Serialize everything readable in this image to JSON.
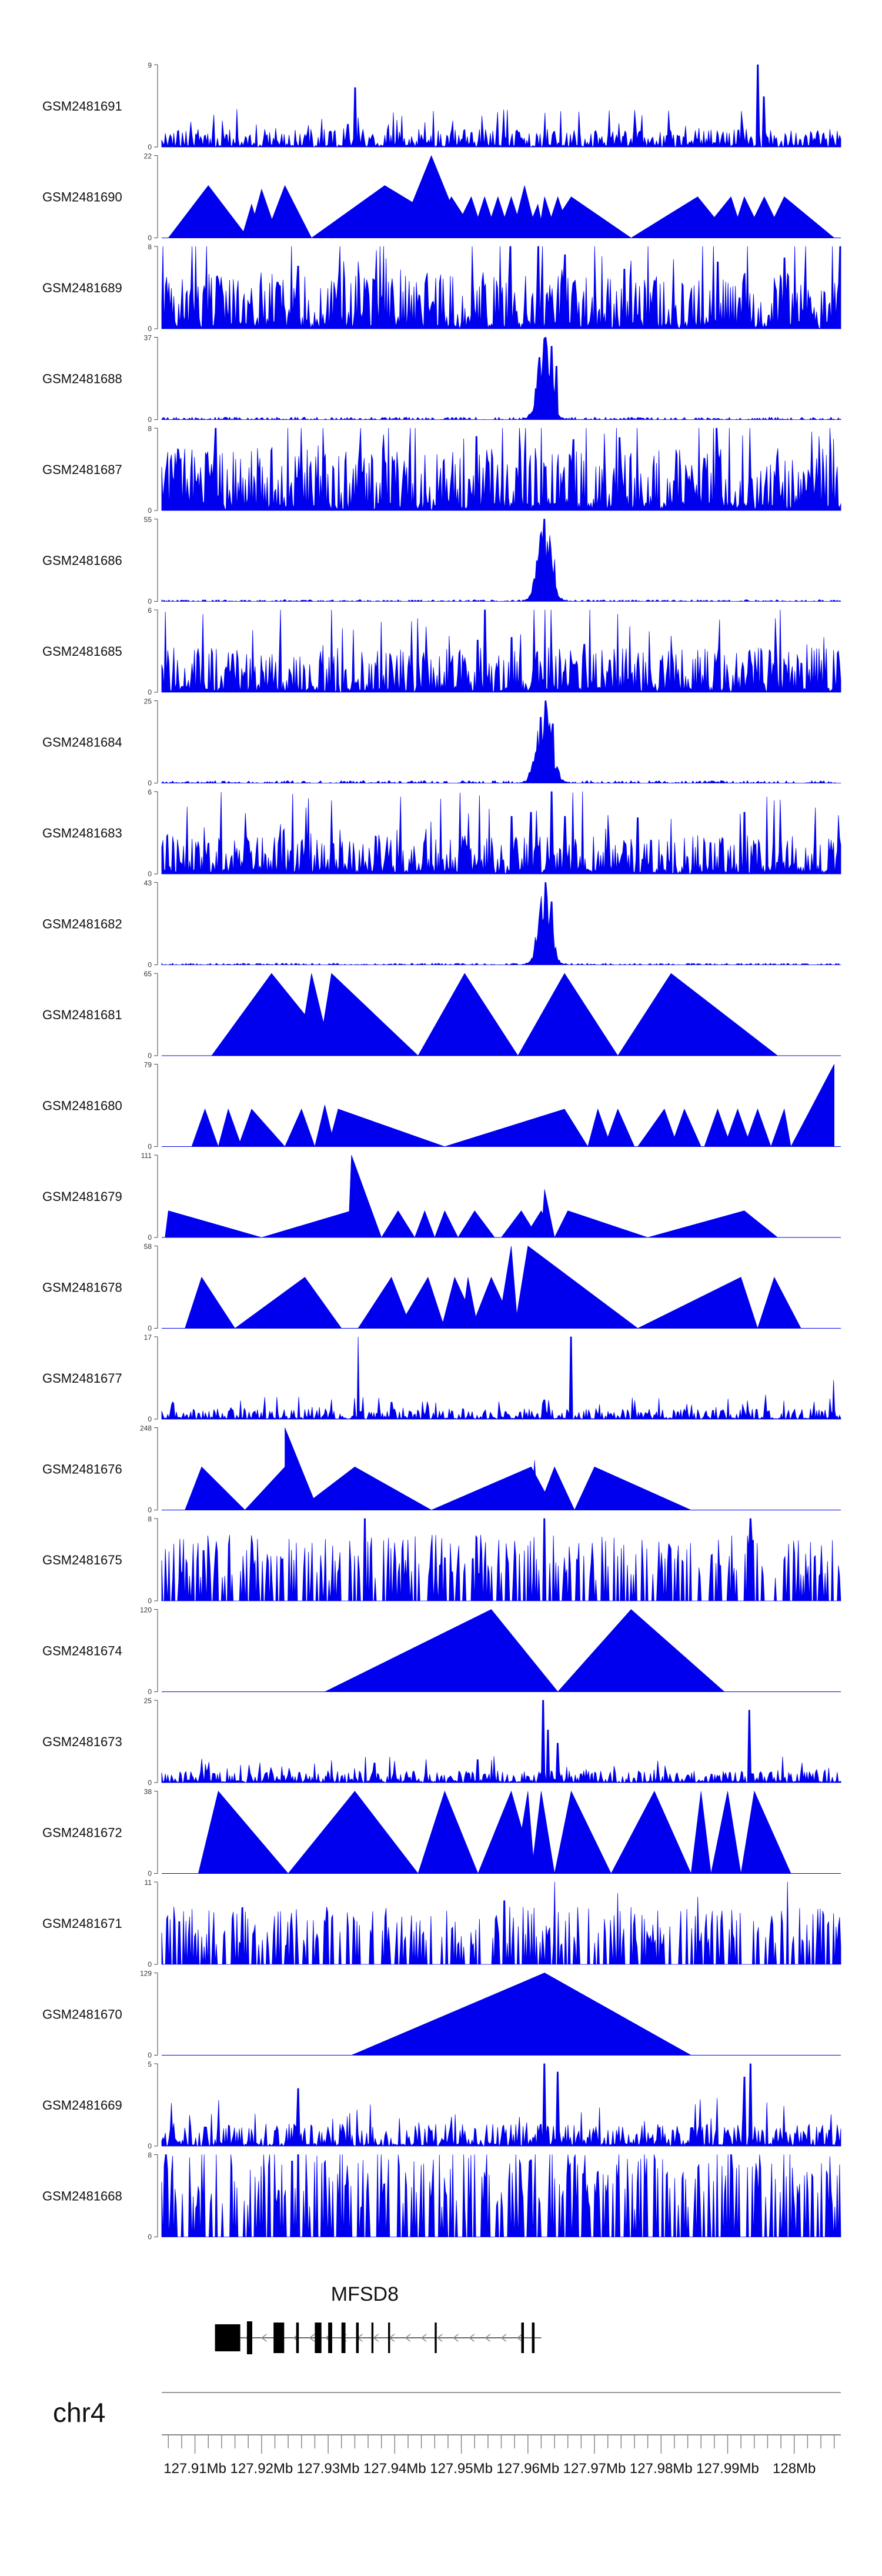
{
  "chart_data": {
    "type": "area",
    "chromosome": "chr4",
    "x_range_mb": [
      127.905,
      128.007
    ],
    "axis_ticks": [
      "127.91Mb",
      "127.92Mb",
      "127.93Mb",
      "127.94Mb",
      "127.95Mb",
      "127.96Mb",
      "127.97Mb",
      "127.98Mb",
      "127.99Mb",
      "128Mb"
    ],
    "fill_color": "#0000ee",
    "gene": {
      "name": "MFSD8",
      "strand": "-",
      "start": 127.913,
      "end": 127.962,
      "exons": [
        [
          127.913,
          127.9168
        ],
        [
          127.9178,
          127.9186
        ],
        [
          127.9218,
          127.9234
        ],
        [
          127.9252,
          127.9256
        ],
        [
          127.928,
          127.929
        ],
        [
          127.93,
          127.9306
        ],
        [
          127.932,
          127.9326
        ],
        [
          127.9342,
          127.9346
        ],
        [
          127.9365,
          127.9368
        ],
        [
          127.939,
          127.9393
        ],
        [
          127.946,
          127.9463
        ],
        [
          127.959,
          127.9594
        ],
        [
          127.9606,
          127.961
        ]
      ]
    },
    "tracks": [
      {
        "name": "GSM2481691",
        "ymax": 9,
        "style": "dense",
        "seed": 11,
        "base": 0.12,
        "spikes": [
          [
            127.934,
            6.5
          ],
          [
            127.9345,
            3.2
          ],
          [
            127.9515,
            1.6
          ],
          [
            127.9945,
            9
          ],
          [
            127.9955,
            5.5
          ],
          [
            127.933,
            2.5
          ]
        ]
      },
      {
        "name": "GSM2481690",
        "ymax": 22,
        "style": "tri",
        "peaks": [
          [
            127.906,
            127.912,
            127.918,
            14
          ],
          [
            127.917,
            127.9185,
            127.92,
            9
          ],
          [
            127.918,
            127.92,
            127.9225,
            13
          ],
          [
            127.9205,
            127.9235,
            127.9275,
            14
          ],
          [
            127.9275,
            127.9385,
            127.9515,
            14
          ],
          [
            127.9405,
            127.9455,
            127.9505,
            22
          ],
          [
            127.9455,
            127.9485,
            127.9525,
            11
          ],
          [
            127.9485,
            127.9515,
            127.9535,
            11
          ],
          [
            127.9515,
            127.9535,
            127.9555,
            11
          ],
          [
            127.9535,
            127.9555,
            127.9575,
            11
          ],
          [
            127.9555,
            127.9575,
            127.9595,
            11
          ],
          [
            127.9575,
            127.9595,
            127.9615,
            14
          ],
          [
            127.9595,
            127.9615,
            127.9625,
            9
          ],
          [
            127.9615,
            127.9625,
            127.9645,
            11
          ],
          [
            127.9625,
            127.9645,
            127.9665,
            11
          ],
          [
            127.9625,
            127.9665,
            127.9755,
            11
          ],
          [
            127.9755,
            127.9855,
            127.9905,
            11
          ],
          [
            127.9855,
            127.9905,
            127.9925,
            11
          ],
          [
            127.9905,
            127.9925,
            127.9955,
            11
          ],
          [
            127.9925,
            127.9955,
            127.9985,
            11
          ],
          [
            127.9955,
            127.9985,
            128.006,
            11
          ]
        ]
      },
      {
        "name": "GSM2481689",
        "ymax": 8,
        "style": "dense",
        "seed": 23,
        "base": 0.38,
        "spikes": [
          [
            127.9615,
            8
          ],
          [
            127.9655,
            7.2
          ],
          [
            127.9755,
            6.6
          ],
          [
            127.9745,
            5.8
          ],
          [
            127.9255,
            6.1
          ],
          [
            127.9885,
            6.5
          ],
          [
            127.9985,
            6.9
          ]
        ]
      },
      {
        "name": "GSM2481688",
        "ymax": 37,
        "style": "peak",
        "seed": 31,
        "base": 0.03,
        "center": 127.9625,
        "width": 0.0016,
        "height": 0.92,
        "spikes": [
          [
            127.9627,
            37
          ],
          [
            127.9635,
            33
          ],
          [
            127.9618,
            28
          ],
          [
            127.9643,
            24
          ]
        ]
      },
      {
        "name": "GSM2481687",
        "ymax": 8,
        "style": "dense",
        "seed": 37,
        "base": 0.42,
        "spikes": [
          [
            127.9883,
            8
          ],
          [
            127.9523,
            7.2
          ],
          [
            127.9668,
            6.9
          ],
          [
            127.9738,
            7.1
          ],
          [
            127.9285,
            6.3
          ]
        ]
      },
      {
        "name": "GSM2481686",
        "ymax": 55,
        "style": "peak",
        "seed": 41,
        "base": 0.02,
        "center": 127.9625,
        "width": 0.0016,
        "height": 0.92,
        "spikes": [
          [
            127.9625,
            55
          ],
          [
            127.9633,
            44
          ],
          [
            127.9617,
            32
          ],
          [
            127.964,
            28
          ]
        ]
      },
      {
        "name": "GSM2481685",
        "ymax": 6,
        "style": "dense",
        "seed": 47,
        "base": 0.3,
        "spikes": [
          [
            127.9535,
            6
          ],
          [
            127.9525,
            3.8
          ],
          [
            127.9575,
            4
          ],
          [
            127.9685,
            3.5
          ],
          [
            127.9815,
            4.1
          ]
        ]
      },
      {
        "name": "GSM2481684",
        "ymax": 25,
        "style": "peak",
        "seed": 53,
        "base": 0.03,
        "center": 127.9625,
        "width": 0.0018,
        "height": 0.92,
        "spikes": [
          [
            127.9627,
            25
          ],
          [
            127.9619,
            20
          ],
          [
            127.9637,
            18
          ]
        ]
      },
      {
        "name": "GSM2481683",
        "ymax": 6,
        "style": "dense",
        "seed": 59,
        "base": 0.26,
        "spikes": [
          [
            127.9635,
            6
          ],
          [
            127.9605,
            4.5
          ],
          [
            127.9655,
            4.2
          ],
          [
            127.9765,
            4.1
          ],
          [
            127.9925,
            4.5
          ],
          [
            127.9575,
            4.2
          ]
        ]
      },
      {
        "name": "GSM2481682",
        "ymax": 43,
        "style": "peak",
        "seed": 61,
        "base": 0.02,
        "center": 127.9625,
        "width": 0.0015,
        "height": 0.92,
        "spikes": [
          [
            127.9627,
            43
          ],
          [
            127.9619,
            30
          ],
          [
            127.9635,
            33
          ]
        ]
      },
      {
        "name": "GSM2481681",
        "ymax": 65,
        "style": "tri",
        "peaks": [
          [
            127.9125,
            127.9215,
            127.9315,
            65
          ],
          [
            127.9255,
            127.9275,
            127.9305,
            65
          ],
          [
            127.9285,
            127.9305,
            127.9325,
            60
          ],
          [
            127.9285,
            127.9305,
            127.9435,
            65
          ],
          [
            127.9435,
            127.9505,
            127.9585,
            65
          ],
          [
            127.9585,
            127.9655,
            127.9735,
            65
          ],
          [
            127.9735,
            127.9815,
            127.9975,
            65
          ]
        ]
      },
      {
        "name": "GSM2481680",
        "ymax": 79,
        "style": "tri",
        "peaks": [
          [
            127.9095,
            127.9115,
            127.9135,
            36
          ],
          [
            127.9135,
            127.915,
            127.917,
            36
          ],
          [
            127.9165,
            127.9185,
            127.9235,
            36
          ],
          [
            127.9235,
            127.926,
            127.928,
            36
          ],
          [
            127.928,
            127.9295,
            127.931,
            40
          ],
          [
            127.93,
            127.9315,
            127.9475,
            36
          ],
          [
            127.9475,
            127.9655,
            127.969,
            36
          ],
          [
            127.969,
            127.9705,
            127.9725,
            36
          ],
          [
            127.9715,
            127.9735,
            127.976,
            36
          ],
          [
            127.9765,
            127.9805,
            127.9825,
            36
          ],
          [
            127.9815,
            127.9835,
            127.986,
            36
          ],
          [
            127.9865,
            127.9885,
            127.9905,
            36
          ],
          [
            127.9895,
            127.9915,
            127.9935,
            36
          ],
          [
            127.9925,
            127.9945,
            127.9965,
            36
          ],
          [
            127.9965,
            127.9985,
            127.9995,
            36
          ],
          [
            127.9995,
            128.006,
            128.006,
            79
          ]
        ]
      },
      {
        "name": "GSM2481679",
        "ymax": 111,
        "style": "tri",
        "peaks": [
          [
            127.9055,
            127.906,
            127.92,
            36
          ],
          [
            127.92,
            127.9335,
            127.938,
            36
          ],
          [
            127.933,
            127.9335,
            127.938,
            111
          ],
          [
            127.938,
            127.9405,
            127.943,
            36
          ],
          [
            127.943,
            127.9445,
            127.946,
            36
          ],
          [
            127.946,
            127.9475,
            127.9495,
            36
          ],
          [
            127.9495,
            127.952,
            127.955,
            36
          ],
          [
            127.956,
            127.959,
            127.9615,
            36
          ],
          [
            127.9595,
            127.962,
            127.964,
            36
          ],
          [
            127.962,
            127.9625,
            127.964,
            65
          ],
          [
            127.964,
            127.966,
            127.978,
            36
          ],
          [
            127.978,
            127.9925,
            127.9975,
            36
          ]
        ]
      },
      {
        "name": "GSM2481678",
        "ymax": 58,
        "style": "tri",
        "peaks": [
          [
            127.9085,
            127.911,
            127.916,
            36
          ],
          [
            127.916,
            127.9265,
            127.932,
            36
          ],
          [
            127.9345,
            127.9395,
            127.9425,
            36
          ],
          [
            127.9405,
            127.945,
            127.9475,
            36
          ],
          [
            127.947,
            127.949,
            127.9525,
            36
          ],
          [
            127.95,
            127.951,
            127.9525,
            36
          ],
          [
            127.9515,
            127.9545,
            127.958,
            36
          ],
          [
            127.9555,
            127.9575,
            127.9585,
            58
          ],
          [
            127.958,
            127.96,
            127.9765,
            58
          ],
          [
            127.9765,
            127.992,
            127.9945,
            36
          ],
          [
            127.9945,
            127.997,
            128.001,
            36
          ]
        ]
      },
      {
        "name": "GSM2481677",
        "ymax": 17,
        "style": "dense",
        "seed": 71,
        "base": 0.07,
        "spikes": [
          [
            127.9345,
            17
          ],
          [
            127.9665,
            17
          ],
          [
            127.9957,
            5
          ],
          [
            128.0059,
            8
          ],
          [
            127.9205,
            4.5
          ],
          [
            127.9395,
            3.5
          ],
          [
            127.9625,
            4
          ]
        ]
      },
      {
        "name": "GSM2481676",
        "ymax": 248,
        "style": "tri",
        "peaks": [
          [
            127.9085,
            127.911,
            127.9175,
            130
          ],
          [
            127.9175,
            127.9235,
            127.9285,
            130
          ],
          [
            127.9285,
            127.9235,
            127.9235,
            248
          ],
          [
            127.9255,
            127.934,
            127.9455,
            130
          ],
          [
            127.9455,
            127.9605,
            127.964,
            130
          ],
          [
            127.9605,
            127.961,
            127.9615,
            150
          ],
          [
            127.9615,
            127.964,
            127.967,
            130
          ],
          [
            127.967,
            127.97,
            127.9845,
            130
          ]
        ]
      },
      {
        "name": "GSM2481675",
        "ymax": 8,
        "style": "spiky",
        "seed": 79,
        "base": 0.4,
        "spikes": [
          [
            127.9355,
            8
          ],
          [
            127.9625,
            8
          ],
          [
            127.9935,
            8
          ]
        ]
      },
      {
        "name": "GSM2481674",
        "ymax": 120,
        "style": "tri",
        "peaks": [
          [
            127.9295,
            127.9545,
            127.9645,
            120
          ],
          [
            127.9645,
            127.9755,
            127.9895,
            120
          ]
        ]
      },
      {
        "name": "GSM2481673",
        "ymax": 25,
        "style": "dense",
        "seed": 83,
        "base": 0.08,
        "spikes": [
          [
            127.9623,
            25
          ],
          [
            127.963,
            16
          ],
          [
            127.9933,
            22
          ],
          [
            127.9525,
            7
          ],
          [
            127.937,
            6
          ],
          [
            127.9645,
            12
          ]
        ]
      },
      {
        "name": "GSM2481672",
        "ymax": 38,
        "style": "tri",
        "peaks": [
          [
            127.9105,
            127.9135,
            127.924,
            38
          ],
          [
            127.924,
            127.934,
            127.9435,
            38
          ],
          [
            127.9435,
            127.9475,
            127.9525,
            38
          ],
          [
            127.9525,
            127.9575,
            127.961,
            38
          ],
          [
            127.958,
            127.96,
            127.961,
            38
          ],
          [
            127.9605,
            127.962,
            127.964,
            38
          ],
          [
            127.964,
            127.9665,
            127.9725,
            38
          ],
          [
            127.9725,
            127.979,
            127.9845,
            38
          ],
          [
            127.9845,
            127.986,
            127.9875,
            38
          ],
          [
            127.9875,
            127.99,
            127.992,
            38
          ],
          [
            127.992,
            127.994,
            127.9995,
            38
          ]
        ]
      },
      {
        "name": "GSM2481671",
        "ymax": 11,
        "style": "spiky",
        "seed": 89,
        "base": 0.35,
        "spikes": [
          [
            127.964,
            11
          ],
          [
            127.999,
            11
          ],
          [
            127.9565,
            8.5
          ],
          [
            127.9735,
            9.5
          ],
          [
            127.9855,
            9
          ]
        ]
      },
      {
        "name": "GSM2481670",
        "ymax": 129,
        "style": "tri",
        "peaks": [
          [
            127.9335,
            127.9625,
            127.9845,
            129
          ]
        ]
      },
      {
        "name": "GSM2481669",
        "ymax": 5,
        "style": "dense",
        "seed": 97,
        "base": 0.15,
        "spikes": [
          [
            127.9935,
            5
          ],
          [
            127.9625,
            5
          ],
          [
            127.9645,
            4.5
          ],
          [
            127.9255,
            3.5
          ],
          [
            127.9925,
            4.2
          ]
        ]
      },
      {
        "name": "GSM2481668",
        "ymax": 8,
        "style": "spiky",
        "seed": 101,
        "base": 0.55,
        "spikes": [
          [
            127.9255,
            8
          ],
          [
            127.9775,
            8
          ],
          [
            127.9905,
            8
          ],
          [
            127.9605,
            7.5
          ],
          [
            127.9295,
            7.2
          ]
        ]
      }
    ]
  }
}
